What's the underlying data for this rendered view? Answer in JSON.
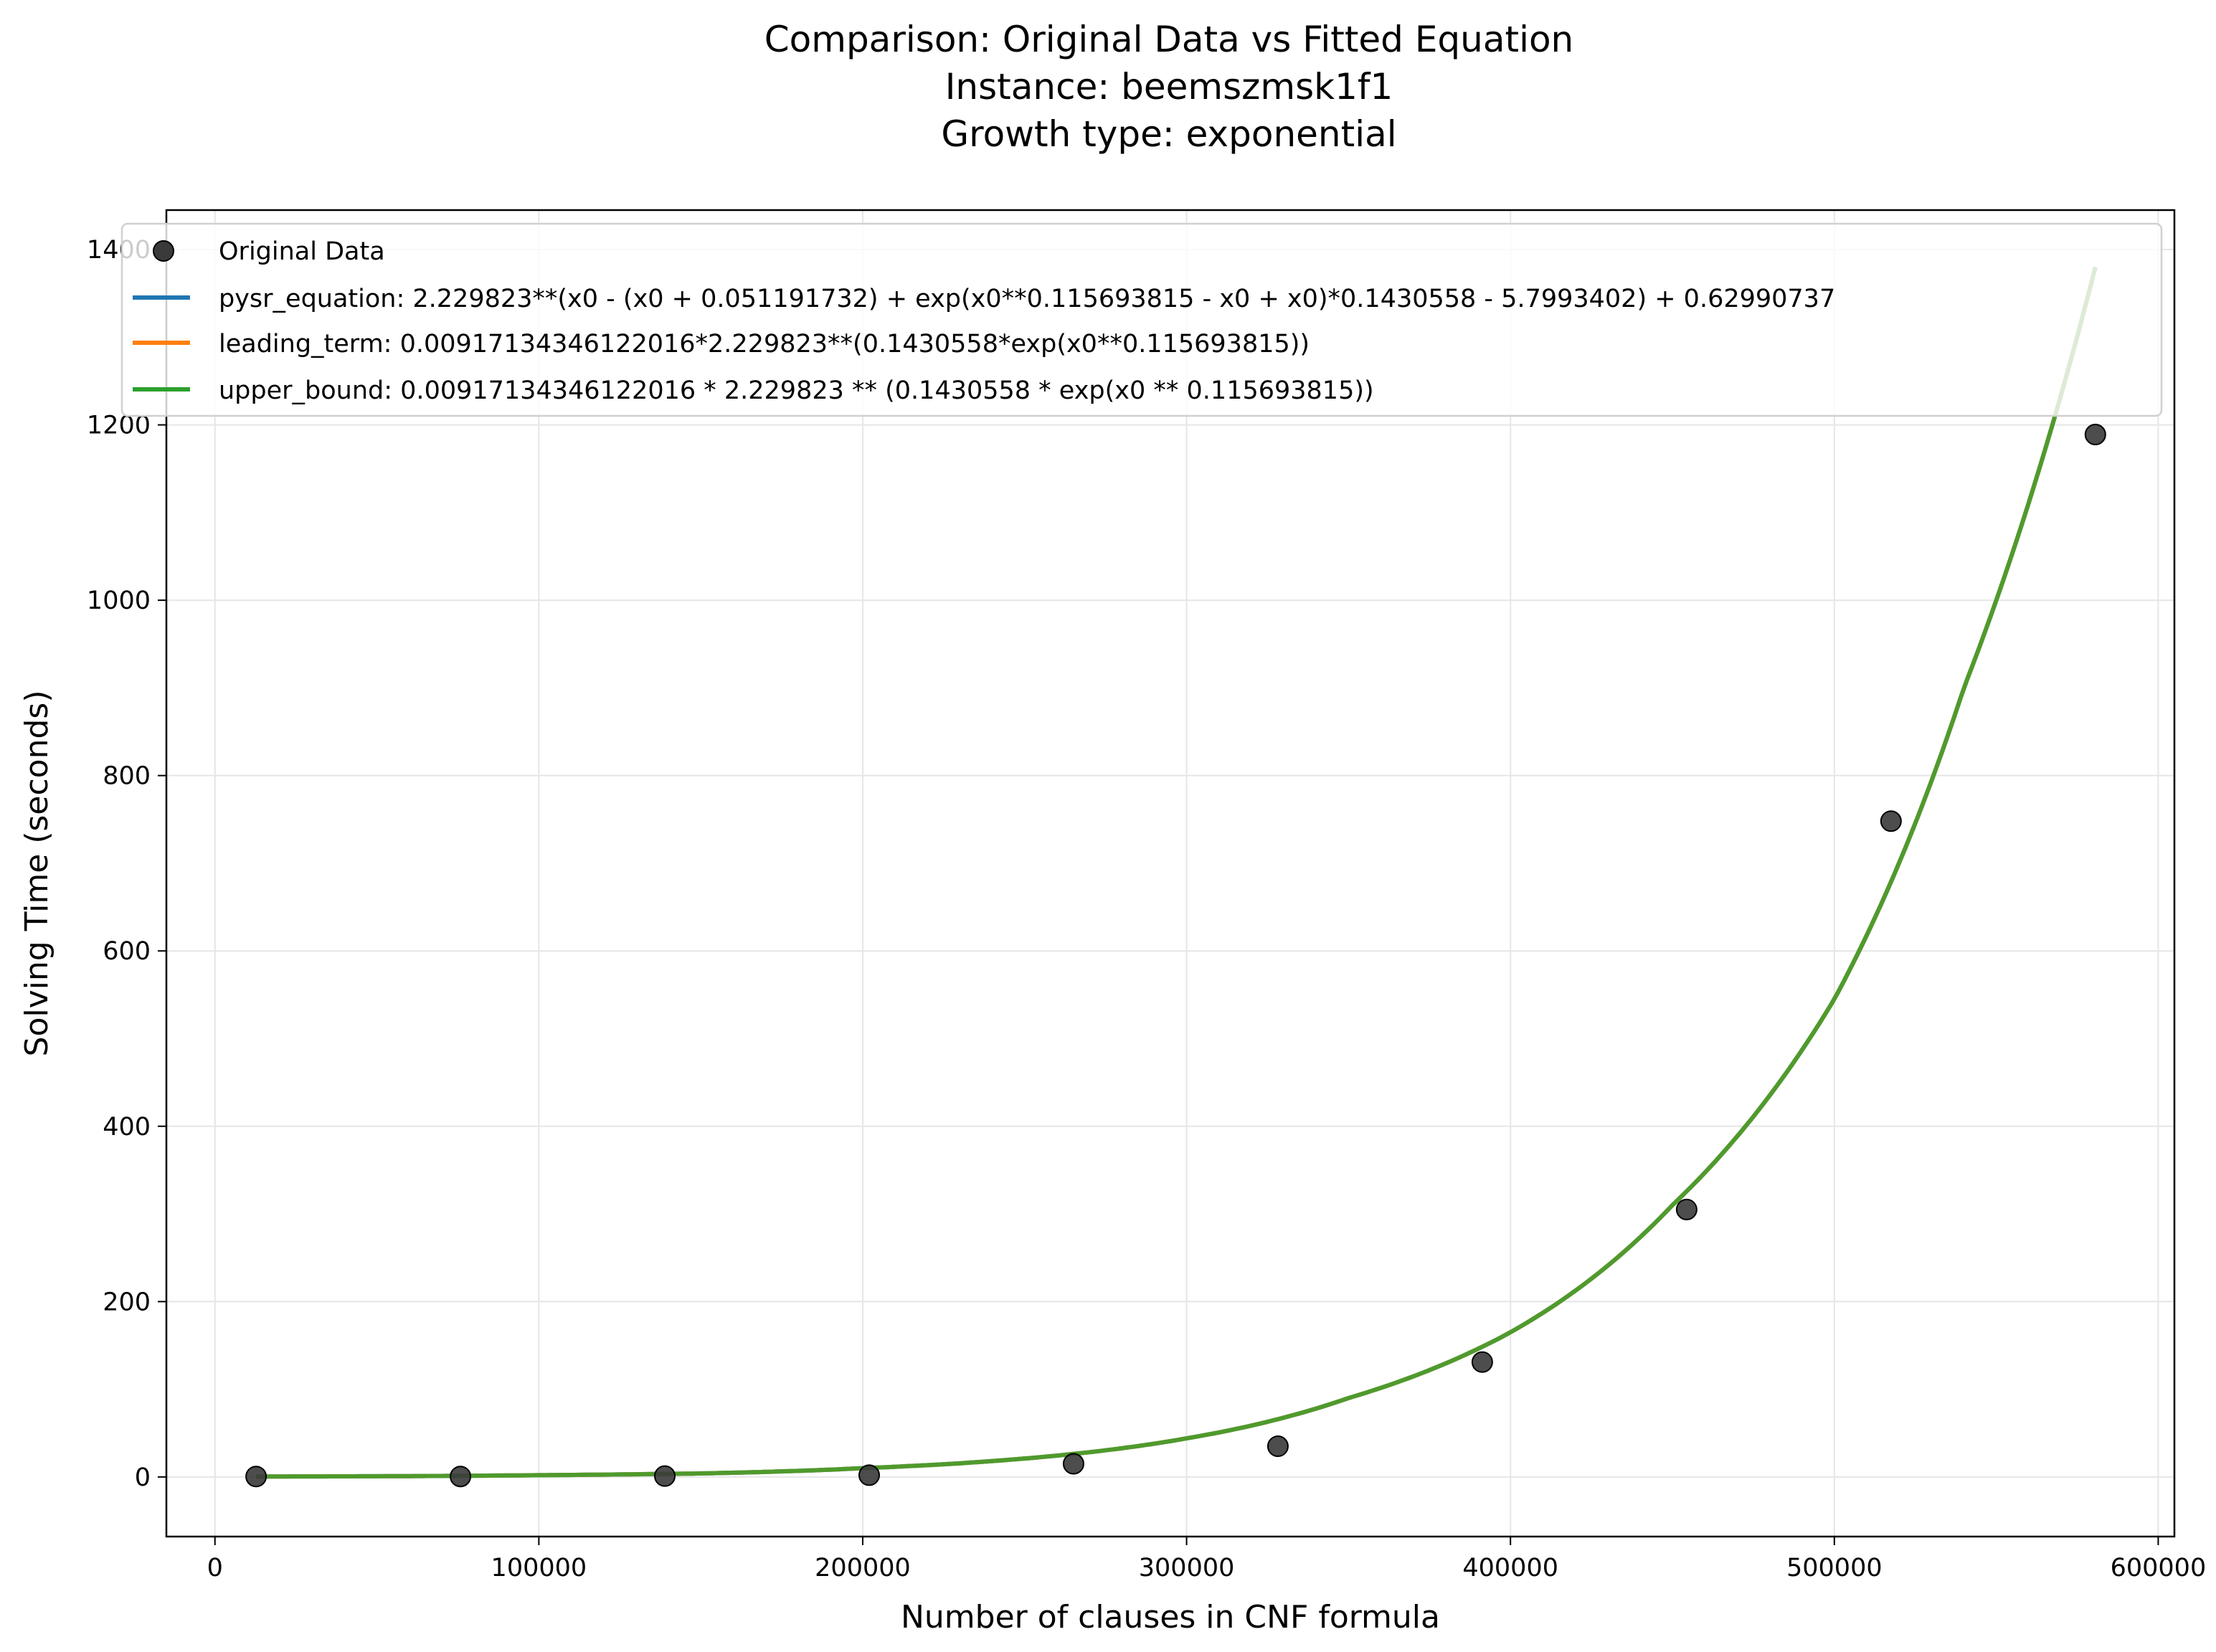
{
  "chart_data": {
    "type": "line",
    "title_lines": [
      "Comparison: Original Data vs Fitted Equation",
      "Instance: beemszmsk1f1",
      "Growth type: exponential"
    ],
    "xlabel": "Number of clauses in CNF formula",
    "ylabel": "Solving Time (seconds)",
    "xlim": [
      -15000,
      605000
    ],
    "ylim": [
      -68,
      1445
    ],
    "xticks": [
      0,
      100000,
      200000,
      300000,
      400000,
      500000,
      600000
    ],
    "xtick_labels": [
      "0",
      "100000",
      "200000",
      "300000",
      "400000",
      "500000",
      "600000"
    ],
    "yticks": [
      0,
      200,
      400,
      600,
      800,
      1000,
      1200,
      1400
    ],
    "ytick_labels": [
      "0",
      "200",
      "400",
      "600",
      "800",
      "1000",
      "1200",
      "1400"
    ],
    "grid": true,
    "legend_position": "top-left",
    "scatter": {
      "name": "Original Data",
      "color": "#3a3a3a",
      "x": [
        12700,
        75800,
        138900,
        202000,
        265100,
        328200,
        391300,
        454400,
        517500,
        580600
      ],
      "y": [
        0.5,
        0.5,
        1,
        2,
        15,
        35,
        131,
        305,
        748,
        1189
      ]
    },
    "series": [
      {
        "name": "pysr_equation: 2.229823**(x0 - (x0 + 0.051191732) + exp(x0**0.115693815 - x0 + x0)*0.1430558 - 5.7993402) + 0.62990737",
        "color": "#1f77b4",
        "x": [
          12700,
          50000,
          100000,
          150000,
          200000,
          250000,
          300000,
          350000,
          400000,
          450000,
          500000,
          540000,
          580600
        ],
        "y": [
          0.5,
          0.8,
          2,
          4,
          10,
          21,
          44,
          90,
          165,
          310,
          545,
          900,
          1380
        ]
      },
      {
        "name": "leading_term: 0.00917134346122016*2.229823**(0.1430558*exp(x0**0.115693815))",
        "color": "#ff7f0e",
        "x": [
          12700,
          50000,
          100000,
          150000,
          200000,
          250000,
          300000,
          350000,
          400000,
          450000,
          500000,
          540000,
          580600
        ],
        "y": [
          0.5,
          0.8,
          2,
          4,
          10,
          21,
          44,
          90,
          165,
          310,
          545,
          900,
          1380
        ]
      },
      {
        "name": "upper_bound: 0.00917134346122016 * 2.229823 ** (0.1430558 * exp(x0 ** 0.115693815))",
        "color": "#2ca02c",
        "x": [
          12700,
          50000,
          100000,
          150000,
          200000,
          250000,
          300000,
          350000,
          400000,
          450000,
          500000,
          540000,
          580600
        ],
        "y": [
          0.5,
          0.8,
          2,
          4,
          10,
          21,
          44,
          90,
          165,
          310,
          545,
          900,
          1380
        ]
      }
    ]
  }
}
